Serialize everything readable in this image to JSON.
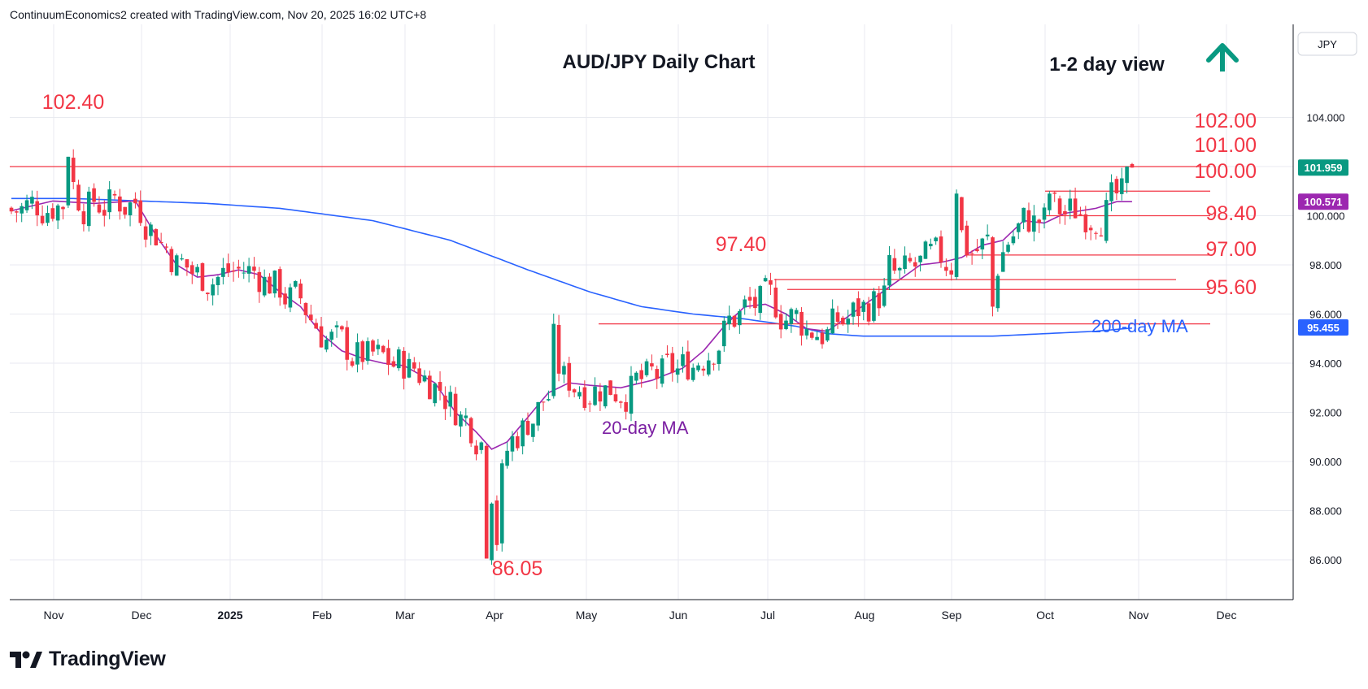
{
  "attribution": "ContinuumEconomics2 created with TradingView.com, Nov 20, 2025 16:02 UTC+8",
  "brand": "TradingView",
  "currency_label": "JPY",
  "colors": {
    "up": "#089981",
    "down": "#f23645",
    "level": "#f23645",
    "ma20": "#9c27b0",
    "ma200": "#2962ff",
    "arrow": "#089981",
    "grid": "#e8eaf0",
    "text": "#131722"
  },
  "chart_data": {
    "type": "candlestick",
    "title": "AUD/JPY Daily Chart",
    "subtitle": "1-2 day view",
    "ylim": [
      84.0,
      106.0
    ],
    "y_ticks": [
      "104.000",
      "102.000",
      "100.000",
      "98.000",
      "96.000",
      "94.000",
      "92.000",
      "90.000",
      "88.000",
      "86.000"
    ],
    "x_labels": [
      "Nov",
      "Dec",
      "2025",
      "Feb",
      "Mar",
      "Apr",
      "May",
      "Jun",
      "Jul",
      "Aug",
      "Sep",
      "Oct",
      "Nov",
      "Dec"
    ],
    "price_badges": [
      {
        "label": "101.959",
        "value": 101.959,
        "color": "#089981"
      },
      {
        "label": "100.571",
        "value": 100.571,
        "color": "#9c27b0"
      },
      {
        "label": "95.455",
        "value": 95.455,
        "color": "#2962ff"
      }
    ],
    "levels": [
      {
        "label": "102.00",
        "value": 102.0
      },
      {
        "label": "101.00",
        "value": 101.0
      },
      {
        "label": "100.00",
        "value": 100.0
      },
      {
        "label": "98.40",
        "value": 98.4
      },
      {
        "label": "97.40",
        "value": 97.4
      },
      {
        "label": "97.00",
        "value": 97.0
      },
      {
        "label": "95.60",
        "value": 95.6
      }
    ],
    "annotations": {
      "high_label": "102.40",
      "low_label": "86.05",
      "ma20_label": "20-day MA",
      "ma200_label": "200-day MA"
    },
    "ma200_path": [
      [
        0,
        100.7
      ],
      [
        12,
        100.7
      ],
      [
        25,
        100.6
      ],
      [
        38,
        100.5
      ],
      [
        52,
        100.3
      ],
      [
        70,
        99.8
      ],
      [
        85,
        99.0
      ],
      [
        100,
        97.8
      ],
      [
        112,
        96.9
      ],
      [
        122,
        96.3
      ],
      [
        132,
        96.0
      ],
      [
        142,
        95.8
      ],
      [
        152,
        95.5
      ],
      [
        158,
        95.2
      ],
      [
        165,
        95.1
      ],
      [
        180,
        95.1
      ],
      [
        190,
        95.1
      ],
      [
        200,
        95.2
      ],
      [
        210,
        95.3
      ],
      [
        218,
        95.45
      ]
    ],
    "ma20_path": [
      [
        0,
        100.2
      ],
      [
        8,
        100.6
      ],
      [
        16,
        100.5
      ],
      [
        24,
        100.6
      ],
      [
        28,
        99.2
      ],
      [
        32,
        98.0
      ],
      [
        36,
        97.5
      ],
      [
        40,
        97.6
      ],
      [
        44,
        97.8
      ],
      [
        48,
        97.6
      ],
      [
        52,
        96.9
      ],
      [
        56,
        96.3
      ],
      [
        60,
        95.2
      ],
      [
        64,
        94.5
      ],
      [
        68,
        94.2
      ],
      [
        72,
        94.0
      ],
      [
        76,
        93.9
      ],
      [
        82,
        93.2
      ],
      [
        86,
        92.0
      ],
      [
        90,
        91.2
      ],
      [
        93,
        90.5
      ],
      [
        96,
        90.8
      ],
      [
        100,
        91.8
      ],
      [
        104,
        92.8
      ],
      [
        108,
        93.2
      ],
      [
        112,
        93.1
      ],
      [
        118,
        93.0
      ],
      [
        124,
        93.3
      ],
      [
        130,
        93.8
      ],
      [
        134,
        94.5
      ],
      [
        138,
        95.5
      ],
      [
        142,
        96.3
      ],
      [
        146,
        96.4
      ],
      [
        150,
        96.0
      ],
      [
        154,
        95.4
      ],
      [
        158,
        95.3
      ],
      [
        164,
        96.2
      ],
      [
        170,
        97.1
      ],
      [
        176,
        98.0
      ],
      [
        180,
        98.1
      ],
      [
        184,
        98.3
      ],
      [
        188,
        98.8
      ],
      [
        192,
        99.0
      ],
      [
        196,
        99.8
      ],
      [
        200,
        99.7
      ],
      [
        204,
        100.1
      ],
      [
        210,
        100.3
      ],
      [
        214,
        100.571
      ]
    ]
  }
}
